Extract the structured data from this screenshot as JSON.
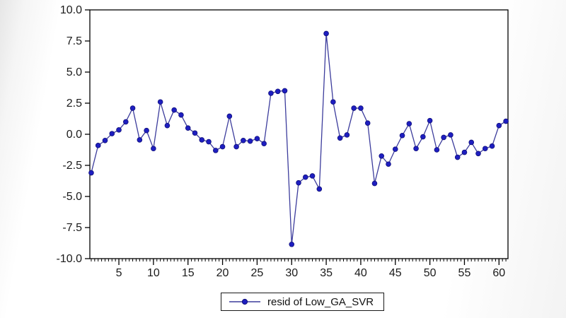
{
  "chart_data": {
    "type": "line",
    "title": "",
    "xlabel": "",
    "ylabel": "",
    "xlim": [
      0.8,
      61.3
    ],
    "ylim": [
      -10,
      10
    ],
    "grid": false,
    "legend_position": "bottom-center",
    "series": [
      {
        "name": "resid of Low_GA_SVR",
        "x": [
          1,
          2,
          3,
          4,
          5,
          6,
          7,
          8,
          9,
          10,
          11,
          12,
          13,
          14,
          15,
          16,
          17,
          18,
          19,
          20,
          21,
          22,
          23,
          24,
          25,
          26,
          27,
          28,
          29,
          30,
          31,
          32,
          33,
          34,
          35,
          36,
          37,
          38,
          39,
          40,
          41,
          42,
          43,
          44,
          45,
          46,
          47,
          48,
          49,
          50,
          51,
          52,
          53,
          54,
          55,
          56,
          57,
          58,
          59,
          60,
          61
        ],
        "values": [
          -3.1,
          -0.9,
          -0.5,
          0.05,
          0.35,
          1.0,
          2.1,
          -0.45,
          0.3,
          -1.15,
          2.6,
          0.7,
          1.95,
          1.55,
          0.5,
          0.1,
          -0.45,
          -0.6,
          -1.3,
          -1.0,
          1.45,
          -1.0,
          -0.5,
          -0.55,
          -0.35,
          -0.75,
          3.3,
          3.45,
          3.5,
          -8.85,
          -3.9,
          -3.45,
          -3.35,
          -4.4,
          8.1,
          2.6,
          -0.3,
          -0.05,
          2.1,
          2.1,
          0.9,
          -3.95,
          -1.75,
          -2.4,
          -1.2,
          -0.1,
          0.85,
          -1.15,
          -0.2,
          1.1,
          -1.25,
          -0.25,
          -0.05,
          -1.85,
          -1.45,
          -0.65,
          -1.55,
          -1.15,
          -0.95,
          0.7,
          1.05
        ]
      }
    ],
    "y_ticks": [
      {
        "value": 10.0,
        "label": "10.0"
      },
      {
        "value": 7.5,
        "label": "7.5"
      },
      {
        "value": 5.0,
        "label": "5.0"
      },
      {
        "value": 2.5,
        "label": "2.5"
      },
      {
        "value": 0.0,
        "label": "0.0"
      },
      {
        "value": -2.5,
        "label": "-2.5"
      },
      {
        "value": -5.0,
        "label": "-5.0"
      },
      {
        "value": -7.5,
        "label": "-7.5"
      },
      {
        "value": -10.0,
        "label": "-10.0"
      }
    ],
    "x_ticks": [
      {
        "value": 5,
        "label": "5"
      },
      {
        "value": 10,
        "label": "10"
      },
      {
        "value": 15,
        "label": "15"
      },
      {
        "value": 20,
        "label": "20"
      },
      {
        "value": 25,
        "label": "25"
      },
      {
        "value": 30,
        "label": "30"
      },
      {
        "value": 35,
        "label": "35"
      },
      {
        "value": 40,
        "label": "40"
      },
      {
        "value": 45,
        "label": "45"
      },
      {
        "value": 50,
        "label": "50"
      },
      {
        "value": 55,
        "label": "55"
      },
      {
        "value": 60,
        "label": "60"
      }
    ],
    "x_minor_tick_step": 0.5,
    "colors": {
      "line": "#3c3c9c",
      "marker": "#1e1ec0",
      "marker_edge": "#10107a",
      "axis": "#000000",
      "text": "#1a1a1a",
      "plot_background": "#ffffff"
    }
  },
  "legend": {
    "label": "resid of Low_GA_SVR"
  }
}
